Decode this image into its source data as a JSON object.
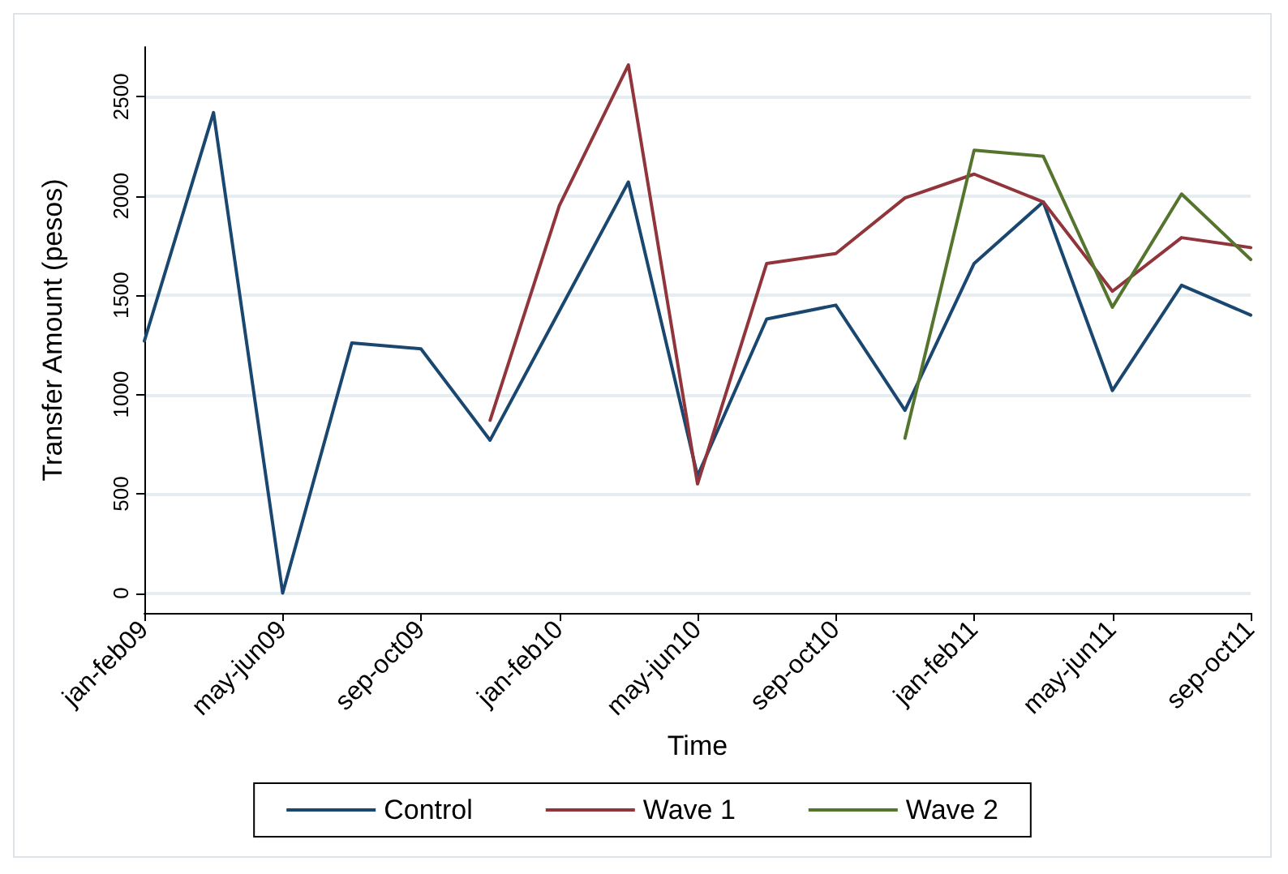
{
  "chart_data": {
    "type": "line",
    "xlabel": "Time",
    "ylabel": "Transfer Amount (pesos)",
    "categories": [
      "jan-feb09",
      null,
      "may-jun09",
      null,
      "sep-oct09",
      null,
      "jan-feb10",
      null,
      "may-jun10",
      null,
      "sep-oct10",
      null,
      "jan-feb11",
      null,
      "may-jun11",
      null,
      "sep-oct11"
    ],
    "series": [
      {
        "name": "Control",
        "color": "#1a476f",
        "values": [
          1270,
          2420,
          0,
          1260,
          1230,
          770,
          1420,
          2070,
          590,
          1380,
          1450,
          920,
          1660,
          1970,
          1020,
          1550,
          1400
        ]
      },
      {
        "name": "Wave 1",
        "color": "#90353b",
        "values": [
          null,
          null,
          null,
          null,
          null,
          870,
          1950,
          2660,
          550,
          1660,
          1710,
          1990,
          2110,
          1970,
          1520,
          1790,
          1740
        ]
      },
      {
        "name": "Wave 2",
        "color": "#55752f",
        "values": [
          null,
          null,
          null,
          null,
          null,
          null,
          null,
          null,
          null,
          null,
          null,
          780,
          2230,
          2200,
          1440,
          2010,
          1680
        ]
      }
    ],
    "ylim": [
      -100,
      2750
    ],
    "yticks": [
      0,
      500,
      1000,
      1500,
      2000,
      2500
    ],
    "grid": "y",
    "legend": "bottom",
    "marker": "none",
    "line_style": "solid"
  }
}
